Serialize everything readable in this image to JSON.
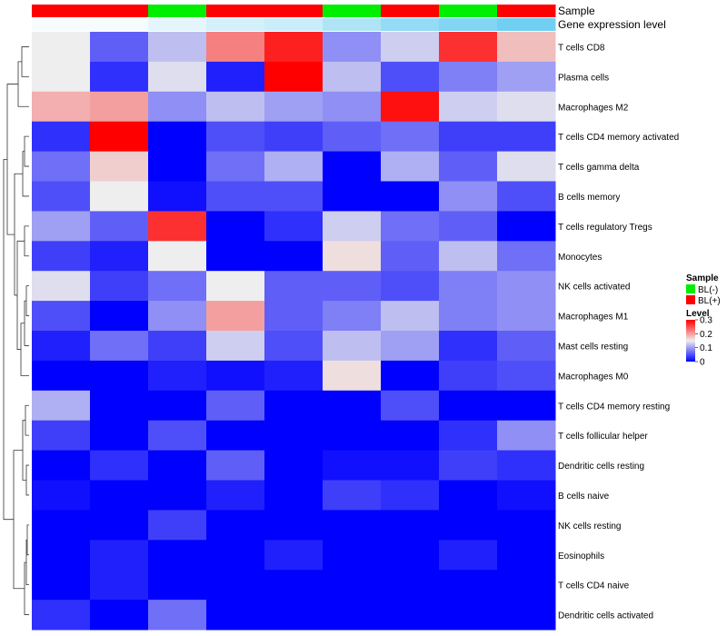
{
  "chart_data": {
    "type": "heatmap",
    "title": "",
    "annotation_rows": {
      "sample_label": "Sample",
      "expression_label": "Gene expression level"
    },
    "columns": [
      {
        "id": "S1",
        "sample": "BL(+)",
        "expression": 0.05
      },
      {
        "id": "S2",
        "sample": "BL(+)",
        "expression": 0.05
      },
      {
        "id": "S3",
        "sample": "BL(-)",
        "expression": 0.15
      },
      {
        "id": "S4",
        "sample": "BL(+)",
        "expression": 0.25
      },
      {
        "id": "S5",
        "sample": "BL(+)",
        "expression": 0.3
      },
      {
        "id": "S6",
        "sample": "BL(-)",
        "expression": 0.45
      },
      {
        "id": "S7",
        "sample": "BL(+)",
        "expression": 0.6
      },
      {
        "id": "S8",
        "sample": "BL(-)",
        "expression": 0.7
      },
      {
        "id": "S9",
        "sample": "BL(+)",
        "expression": 0.8
      }
    ],
    "rows": [
      "T cells CD8",
      "Plasma cells",
      "Macrophages M2",
      "T cells CD4 memory activated",
      "T cells gamma delta",
      "B cells memory",
      "T cells regulatory  Tregs",
      "Monocytes",
      "NK cells activated",
      "Macrophages M1",
      "Mast cells resting",
      "Macrophages M0",
      "T cells CD4 memory resting",
      "T cells follicular helper",
      "Dendritic cells resting",
      "B cells naive",
      "NK cells resting",
      "Eosinophils",
      "T cells CD4 naive",
      "Dendritic cells activated"
    ],
    "values": [
      [
        0.15,
        0.06,
        0.12,
        0.22,
        0.28,
        0.09,
        0.13,
        0.27,
        0.18
      ],
      [
        0.15,
        0.03,
        0.14,
        0.02,
        0.3,
        0.12,
        0.05,
        0.08,
        0.1
      ],
      [
        0.19,
        0.2,
        0.09,
        0.12,
        0.1,
        0.09,
        0.29,
        0.13,
        0.14
      ],
      [
        0.03,
        0.3,
        0.0,
        0.05,
        0.04,
        0.06,
        0.07,
        0.04,
        0.04
      ],
      [
        0.07,
        0.17,
        0.0,
        0.07,
        0.11,
        0.0,
        0.11,
        0.06,
        0.14
      ],
      [
        0.05,
        0.15,
        0.01,
        0.05,
        0.05,
        0.0,
        0.0,
        0.09,
        0.05
      ],
      [
        0.1,
        0.06,
        0.27,
        0.0,
        0.03,
        0.13,
        0.07,
        0.06,
        0.0
      ],
      [
        0.04,
        0.02,
        0.15,
        0.0,
        0.0,
        0.16,
        0.06,
        0.12,
        0.07
      ],
      [
        0.14,
        0.04,
        0.07,
        0.15,
        0.06,
        0.06,
        0.05,
        0.08,
        0.09
      ],
      [
        0.05,
        0.0,
        0.09,
        0.2,
        0.06,
        0.08,
        0.12,
        0.08,
        0.09
      ],
      [
        0.02,
        0.07,
        0.04,
        0.13,
        0.05,
        0.12,
        0.1,
        0.03,
        0.06
      ],
      [
        0.0,
        0.0,
        0.02,
        0.01,
        0.02,
        0.16,
        0.0,
        0.04,
        0.05
      ],
      [
        0.11,
        0.0,
        0.0,
        0.06,
        0.0,
        0.0,
        0.05,
        0.0,
        0.0
      ],
      [
        0.04,
        0.0,
        0.05,
        0.0,
        0.0,
        0.0,
        0.0,
        0.03,
        0.09
      ],
      [
        0.0,
        0.03,
        0.0,
        0.06,
        0.0,
        0.01,
        0.01,
        0.04,
        0.03
      ],
      [
        0.01,
        0.0,
        0.0,
        0.02,
        0.0,
        0.04,
        0.03,
        0.0,
        0.01
      ],
      [
        0.0,
        0.0,
        0.04,
        0.0,
        0.0,
        0.0,
        0.0,
        0.0,
        0.0
      ],
      [
        0.0,
        0.02,
        0.0,
        0.0,
        0.02,
        0.0,
        0.0,
        0.02,
        0.0
      ],
      [
        0.0,
        0.02,
        0.0,
        0.0,
        0.0,
        0.0,
        0.0,
        0.0,
        0.0
      ],
      [
        0.03,
        0.0,
        0.07,
        0.0,
        0.0,
        0.0,
        0.0,
        0.0,
        0.0
      ]
    ],
    "color_scale": {
      "min": 0,
      "mid": 0.15,
      "max": 0.3,
      "low_color": "#0000ff",
      "mid_color": "#eeeeee",
      "high_color": "#ff0000"
    },
    "legend": {
      "placement": "right",
      "sample_title": "Sample",
      "sample_entries": [
        {
          "label": "BL(-)",
          "color": "#00ee00"
        },
        {
          "label": "BL(+)",
          "color": "#ff0000"
        }
      ],
      "level_title": "Level",
      "level_ticks": [
        {
          "value": 0.3,
          "label": "0.3"
        },
        {
          "value": 0.2,
          "label": "0.2"
        },
        {
          "value": 0.1,
          "label": "0.1"
        },
        {
          "value": 0,
          "label": "0"
        }
      ]
    },
    "expression_scale": {
      "low_color": "#ffffff",
      "high_color": "#4dc3ee"
    },
    "sample_colors": {
      "BL(-)": "#00ee00",
      "BL(+)": "#ff0000"
    }
  }
}
